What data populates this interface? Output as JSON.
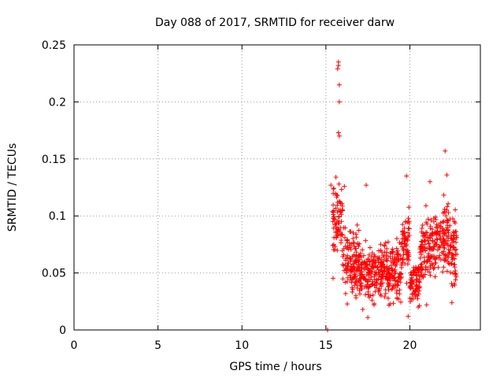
{
  "chart_data": {
    "type": "scatter",
    "title": "Day 088 of 2017, SRMTID for receiver darw",
    "xlabel": "GPS time / hours",
    "ylabel": "SRMTID / TECUs",
    "xlim": [
      0,
      24.2
    ],
    "ylim": [
      0,
      0.25
    ],
    "xticks": [
      0,
      5,
      10,
      15,
      20
    ],
    "xtick_labels": [
      "0",
      "5",
      "10",
      "15",
      "20"
    ],
    "yticks": [
      0,
      0.05,
      0.1,
      0.15,
      0.2,
      0.25
    ],
    "ytick_labels": [
      "0",
      "0.05",
      "0.1",
      "0.15",
      "0.2",
      "0.25"
    ],
    "grid": true,
    "marker": "+",
    "color": "#ff0000",
    "x_extent": [
      15.4,
      22.8
    ],
    "highlight_points": [
      {
        "x": 15.1,
        "y": 0.0
      },
      {
        "x": 15.75,
        "y": 0.235
      },
      {
        "x": 15.75,
        "y": 0.232
      },
      {
        "x": 15.7,
        "y": 0.229
      },
      {
        "x": 15.8,
        "y": 0.215
      },
      {
        "x": 15.8,
        "y": 0.2
      },
      {
        "x": 15.75,
        "y": 0.173
      },
      {
        "x": 15.8,
        "y": 0.17
      },
      {
        "x": 22.1,
        "y": 0.157
      },
      {
        "x": 19.8,
        "y": 0.135
      },
      {
        "x": 22.2,
        "y": 0.136
      },
      {
        "x": 15.6,
        "y": 0.134
      },
      {
        "x": 21.2,
        "y": 0.13
      },
      {
        "x": 17.4,
        "y": 0.127
      },
      {
        "x": 16.1,
        "y": 0.126
      },
      {
        "x": 15.3,
        "y": 0.127
      },
      {
        "x": 17.5,
        "y": 0.011
      },
      {
        "x": 19.9,
        "y": 0.012
      },
      {
        "x": 20.5,
        "y": 0.02
      },
      {
        "x": 21.0,
        "y": 0.022
      },
      {
        "x": 22.5,
        "y": 0.024
      },
      {
        "x": 17.2,
        "y": 0.018
      }
    ],
    "segments": [
      {
        "x0": 15.4,
        "x1": 16.0,
        "center": 0.095,
        "spread": 0.035
      },
      {
        "x0": 16.0,
        "x1": 17.0,
        "center": 0.06,
        "spread": 0.03
      },
      {
        "x0": 17.0,
        "x1": 18.5,
        "center": 0.05,
        "spread": 0.025
      },
      {
        "x0": 18.5,
        "x1": 19.5,
        "center": 0.05,
        "spread": 0.03
      },
      {
        "x0": 19.5,
        "x1": 20.0,
        "center": 0.075,
        "spread": 0.03
      },
      {
        "x0": 20.0,
        "x1": 20.6,
        "center": 0.04,
        "spread": 0.02
      },
      {
        "x0": 20.6,
        "x1": 21.5,
        "center": 0.07,
        "spread": 0.03
      },
      {
        "x0": 21.5,
        "x1": 22.3,
        "center": 0.08,
        "spread": 0.03
      },
      {
        "x0": 22.3,
        "x1": 22.8,
        "center": 0.07,
        "spread": 0.03
      }
    ]
  }
}
